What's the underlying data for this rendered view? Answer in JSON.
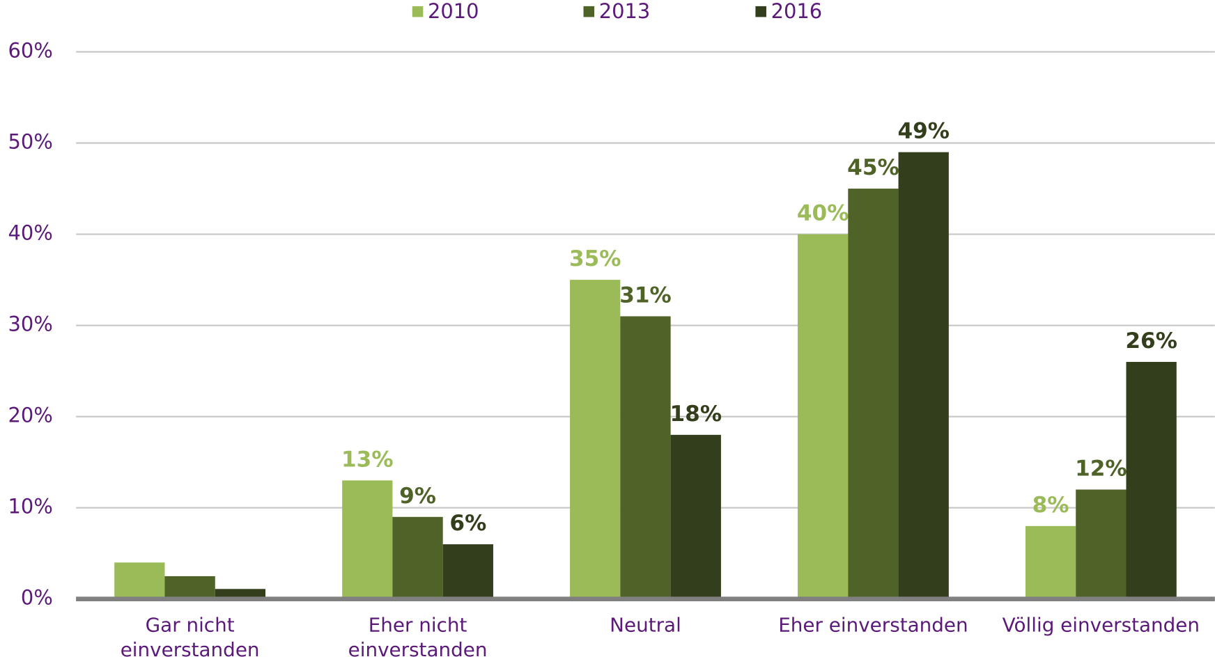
{
  "chart_data": {
    "type": "bar",
    "categories": [
      "Gar nicht einverstanden",
      "Eher nicht einverstanden",
      "Neutral",
      "Eher einverstanden",
      "Völlig einverstanden"
    ],
    "series": [
      {
        "name": "2010",
        "color": "#9bbb59",
        "values": [
          4,
          13,
          35,
          40,
          8
        ],
        "value_labels": [
          null,
          "13%",
          "35%",
          "40%",
          "8%"
        ]
      },
      {
        "name": "2013",
        "color": "#4f6228",
        "values": [
          2.5,
          9,
          31,
          45,
          12
        ],
        "value_labels": [
          null,
          "9%",
          "31%",
          "45%",
          "12%"
        ]
      },
      {
        "name": "2016",
        "color": "#333f1c",
        "values": [
          1.1,
          6,
          18,
          49,
          26
        ],
        "value_labels": [
          null,
          "6%",
          "18%",
          "49%",
          "26%"
        ]
      }
    ],
    "ylim": [
      0,
      60
    ],
    "yticks": [
      {
        "value": 0,
        "label": "0%"
      },
      {
        "value": 10,
        "label": "10%"
      },
      {
        "value": 20,
        "label": "20%"
      },
      {
        "value": 30,
        "label": "30%"
      },
      {
        "value": 40,
        "label": "40%"
      },
      {
        "value": 50,
        "label": "50%"
      },
      {
        "value": 60,
        "label": "60%"
      }
    ],
    "grid": true,
    "legend": "top"
  }
}
